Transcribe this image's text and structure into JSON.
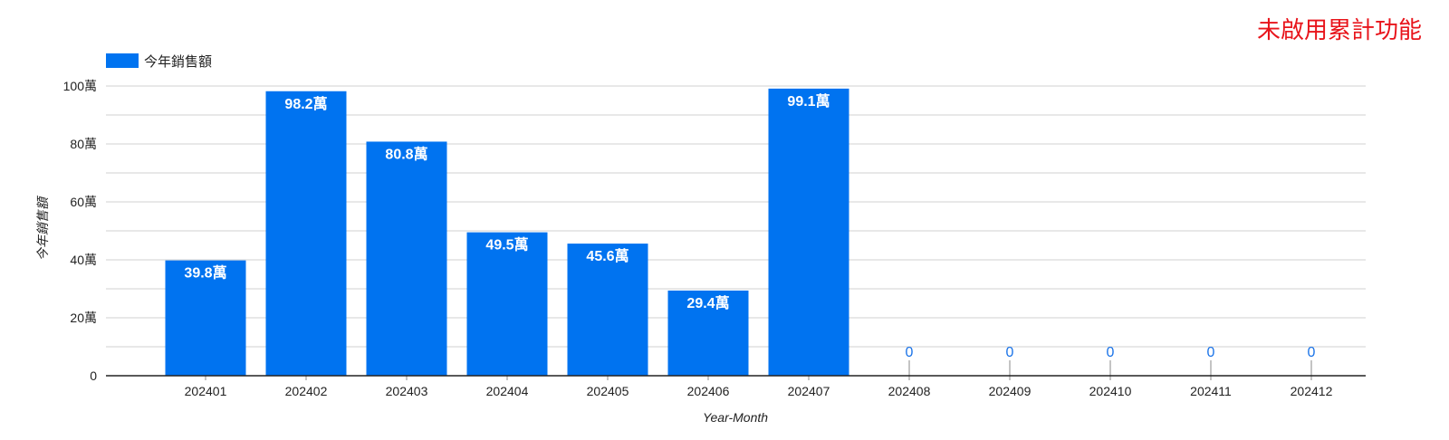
{
  "corner_note": "未啟用累計功能",
  "colors": {
    "bar": "#0073f0",
    "data_label_inside": "#ffffff",
    "data_label_outside": "#1a73e8",
    "gridline": "#d0d0d0",
    "baseline": "#222222",
    "note": "#e8141b"
  },
  "chart_data": {
    "type": "bar",
    "categories": [
      "202401",
      "202402",
      "202403",
      "202404",
      "202405",
      "202406",
      "202407",
      "202408",
      "202409",
      "202410",
      "202411",
      "202412"
    ],
    "series": [
      {
        "name": "今年銷售額",
        "values": [
          398000,
          982000,
          808000,
          495000,
          456000,
          294000,
          991000,
          0,
          0,
          0,
          0,
          0
        ],
        "labels": [
          "39.8萬",
          "98.2萬",
          "80.8萬",
          "49.5萬",
          "45.6萬",
          "29.4萬",
          "99.1萬",
          "0",
          "0",
          "0",
          "0",
          "0"
        ]
      }
    ],
    "xlabel": "Year-Month",
    "ylabel": "今年銷售額",
    "ylim": [
      0,
      1000000
    ],
    "yticks": [
      {
        "value": 0,
        "label": "0"
      },
      {
        "value": 200000,
        "label": "20萬"
      },
      {
        "value": 400000,
        "label": "40萬"
      },
      {
        "value": 600000,
        "label": "60萬"
      },
      {
        "value": 800000,
        "label": "80萬"
      },
      {
        "value": 1000000,
        "label": "100萬"
      }
    ],
    "grid": true,
    "legend_position": "top-left"
  }
}
